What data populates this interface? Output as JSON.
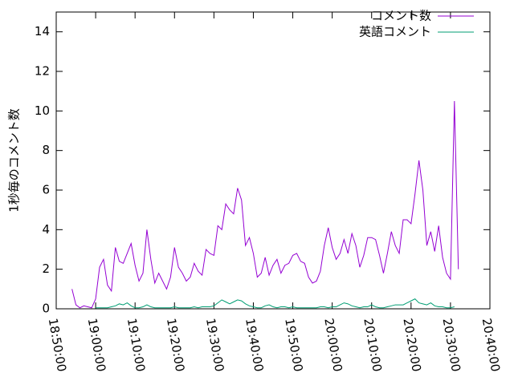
{
  "chart_data": {
    "type": "line",
    "ylabel": "1秒毎のコメント数",
    "xlim": [
      "18:50:00",
      "20:40:00"
    ],
    "xticks": [
      "18:50:00",
      "19:00:00",
      "19:10:00",
      "19:20:00",
      "19:30:00",
      "19:40:00",
      "19:50:00",
      "20:00:00",
      "20:10:00",
      "20:20:00",
      "20:30:00",
      "20:40:00"
    ],
    "ylim": [
      0,
      15
    ],
    "yticks": [
      0,
      2,
      4,
      6,
      8,
      10,
      12,
      14
    ],
    "legend": "top-right",
    "series": [
      {
        "name": "コメント数",
        "color": "#9400d3",
        "x": [
          "18:54:00",
          "18:55:00",
          "18:56:00",
          "18:57:00",
          "18:58:00",
          "18:59:00",
          "19:00:00",
          "19:01:00",
          "19:02:00",
          "19:03:00",
          "19:04:00",
          "19:05:00",
          "19:06:00",
          "19:07:00",
          "19:08:00",
          "19:09:00",
          "19:10:00",
          "19:11:00",
          "19:12:00",
          "19:13:00",
          "19:14:00",
          "19:15:00",
          "19:16:00",
          "19:17:00",
          "19:18:00",
          "19:19:00",
          "19:20:00",
          "19:21:00",
          "19:22:00",
          "19:23:00",
          "19:24:00",
          "19:25:00",
          "19:26:00",
          "19:27:00",
          "19:28:00",
          "19:29:00",
          "19:30:00",
          "19:31:00",
          "19:32:00",
          "19:33:00",
          "19:34:00",
          "19:35:00",
          "19:36:00",
          "19:37:00",
          "19:38:00",
          "19:39:00",
          "19:40:00",
          "19:41:00",
          "19:42:00",
          "19:43:00",
          "19:44:00",
          "19:45:00",
          "19:46:00",
          "19:47:00",
          "19:48:00",
          "19:49:00",
          "19:50:00",
          "19:51:00",
          "19:52:00",
          "19:53:00",
          "19:54:00",
          "19:55:00",
          "19:56:00",
          "19:57:00",
          "19:58:00",
          "19:59:00",
          "20:00:00",
          "20:01:00",
          "20:02:00",
          "20:03:00",
          "20:04:00",
          "20:05:00",
          "20:06:00",
          "20:07:00",
          "20:08:00",
          "20:09:00",
          "20:10:00",
          "20:11:00",
          "20:12:00",
          "20:13:00",
          "20:14:00",
          "20:15:00",
          "20:16:00",
          "20:17:00",
          "20:18:00",
          "20:19:00",
          "20:20:00",
          "20:21:00",
          "20:22:00",
          "20:23:00",
          "20:24:00",
          "20:25:00",
          "20:26:00",
          "20:27:00",
          "20:28:00",
          "20:29:00",
          "20:30:00",
          "20:31:00",
          "20:32:00"
        ],
        "values": [
          1.0,
          0.2,
          0.05,
          0.15,
          0.1,
          0.05,
          0.5,
          2.1,
          2.5,
          1.2,
          0.9,
          3.1,
          2.4,
          2.3,
          2.8,
          3.3,
          2.2,
          1.4,
          1.8,
          4.0,
          2.5,
          1.3,
          1.8,
          1.4,
          1.0,
          1.6,
          3.1,
          2.1,
          1.8,
          1.4,
          1.6,
          2.3,
          1.9,
          1.7,
          3.0,
          2.8,
          2.7,
          4.2,
          4.0,
          5.3,
          5.0,
          4.8,
          6.1,
          5.5,
          3.2,
          3.6,
          2.8,
          1.6,
          1.8,
          2.6,
          1.7,
          2.2,
          2.5,
          1.8,
          2.2,
          2.3,
          2.7,
          2.8,
          2.4,
          2.3,
          1.6,
          1.3,
          1.4,
          1.9,
          3.2,
          4.1,
          3.1,
          2.5,
          2.8,
          3.5,
          2.8,
          3.8,
          3.2,
          2.1,
          2.7,
          3.6,
          3.6,
          3.5,
          2.7,
          1.8,
          2.8,
          3.9,
          3.2,
          2.8,
          4.5,
          4.5,
          4.3,
          5.8,
          7.5,
          6.0,
          3.2,
          3.9,
          2.9,
          4.2,
          2.6,
          1.8,
          1.5,
          10.5,
          2.0
        ]
      },
      {
        "name": "英語コメント",
        "color": "#009e73",
        "x": [
          "19:00:00",
          "19:01:00",
          "19:02:00",
          "19:03:00",
          "19:04:00",
          "19:05:00",
          "19:06:00",
          "19:07:00",
          "19:08:00",
          "19:09:00",
          "19:10:00",
          "19:11:00",
          "19:12:00",
          "19:13:00",
          "19:14:00",
          "19:15:00",
          "19:16:00",
          "19:17:00",
          "19:18:00",
          "19:19:00",
          "19:20:00",
          "19:21:00",
          "19:22:00",
          "19:23:00",
          "19:24:00",
          "19:25:00",
          "19:26:00",
          "19:27:00",
          "19:28:00",
          "19:29:00",
          "19:30:00",
          "19:31:00",
          "19:32:00",
          "19:33:00",
          "19:34:00",
          "19:35:00",
          "19:36:00",
          "19:37:00",
          "19:38:00",
          "19:39:00",
          "19:40:00",
          "19:41:00",
          "19:42:00",
          "19:43:00",
          "19:44:00",
          "19:45:00",
          "19:46:00",
          "19:47:00",
          "19:48:00",
          "19:49:00",
          "19:50:00",
          "19:51:00",
          "19:52:00",
          "19:53:00",
          "19:54:00",
          "19:55:00",
          "19:56:00",
          "19:57:00",
          "19:58:00",
          "19:59:00",
          "20:00:00",
          "20:01:00",
          "20:02:00",
          "20:03:00",
          "20:04:00",
          "20:05:00",
          "20:06:00",
          "20:07:00",
          "20:08:00",
          "20:09:00",
          "20:10:00",
          "20:11:00",
          "20:12:00",
          "20:13:00",
          "20:14:00",
          "20:15:00",
          "20:16:00",
          "20:17:00",
          "20:18:00",
          "20:19:00",
          "20:20:00",
          "20:21:00",
          "20:22:00",
          "20:23:00",
          "20:24:00",
          "20:25:00",
          "20:26:00",
          "20:27:00",
          "20:28:00",
          "20:29:00",
          "20:30:00",
          "20:31:00"
        ],
        "values": [
          0.05,
          0.05,
          0.05,
          0.05,
          0.1,
          0.15,
          0.25,
          0.2,
          0.3,
          0.15,
          0.05,
          0.05,
          0.1,
          0.2,
          0.1,
          0.05,
          0.05,
          0.05,
          0.05,
          0.05,
          0.1,
          0.05,
          0.05,
          0.05,
          0.05,
          0.1,
          0.05,
          0.1,
          0.1,
          0.1,
          0.15,
          0.3,
          0.45,
          0.35,
          0.25,
          0.35,
          0.45,
          0.4,
          0.25,
          0.15,
          0.1,
          0.05,
          0.05,
          0.15,
          0.2,
          0.1,
          0.05,
          0.1,
          0.1,
          0.05,
          0.1,
          0.05,
          0.05,
          0.05,
          0.05,
          0.05,
          0.05,
          0.1,
          0.1,
          0.05,
          0.1,
          0.1,
          0.2,
          0.3,
          0.25,
          0.15,
          0.1,
          0.05,
          0.1,
          0.1,
          0.2,
          0.1,
          0.05,
          0.05,
          0.1,
          0.15,
          0.2,
          0.2,
          0.2,
          0.3,
          0.4,
          0.5,
          0.3,
          0.25,
          0.2,
          0.3,
          0.15,
          0.1,
          0.1,
          0.05,
          0.05,
          0.1
        ]
      }
    ]
  }
}
